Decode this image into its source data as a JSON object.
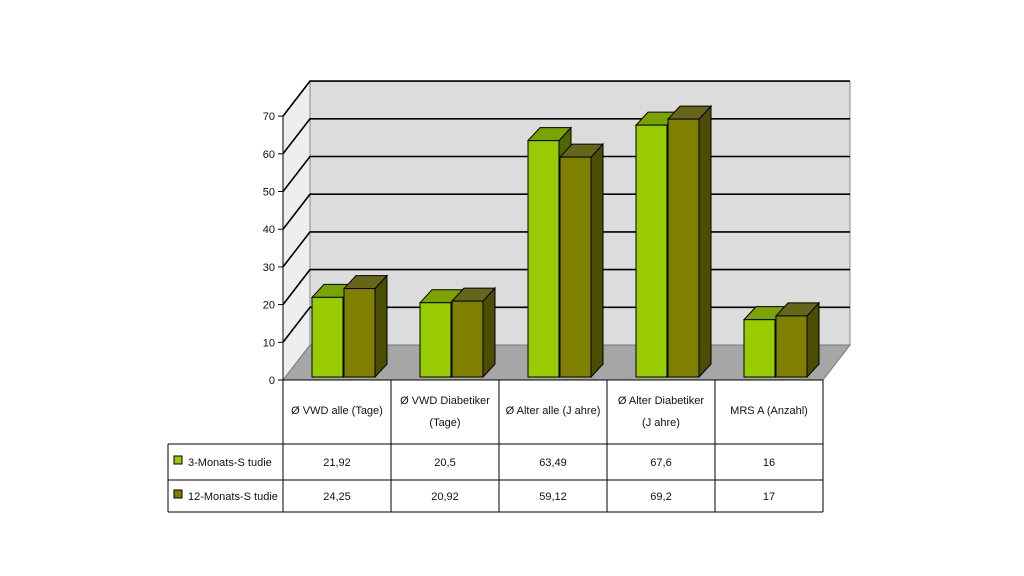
{
  "chart_data": {
    "type": "bar",
    "categories": [
      [
        "Ø VWD alle (Tage)"
      ],
      [
        "Ø VWD Diabetiker",
        "(Tage)"
      ],
      [
        "Ø Alter alle (J ahre)"
      ],
      [
        "Ø Alter Diabetiker",
        "(J ahre)"
      ],
      [
        "MRS A (Anzahl)"
      ]
    ],
    "series": [
      {
        "name": "3-Monats-S tudie",
        "values": [
          21.92,
          20.5,
          63.49,
          67.6,
          16
        ],
        "value_labels": [
          "21,92",
          "20,5",
          "63,49",
          "67,6",
          "16"
        ]
      },
      {
        "name": "12-Monats-S tudie",
        "values": [
          24.25,
          20.92,
          59.12,
          69.2,
          17
        ],
        "value_labels": [
          "24,25",
          "20,92",
          "59,12",
          "69,2",
          "17"
        ]
      }
    ],
    "yticks": [
      0,
      10,
      20,
      30,
      40,
      50,
      60,
      70
    ],
    "ylim": [
      0,
      70
    ],
    "grid": true,
    "legend": "data-table-left",
    "three_d": true
  },
  "colors": {
    "series_front": [
      "#99cc00",
      "#808000"
    ],
    "series_top": [
      "#7aa300",
      "#66661a"
    ],
    "series_side": [
      "#4d6600",
      "#4d4d00"
    ],
    "wall": "#dcdcdc",
    "floor": "#a6a6a6",
    "grid": "#000000"
  }
}
